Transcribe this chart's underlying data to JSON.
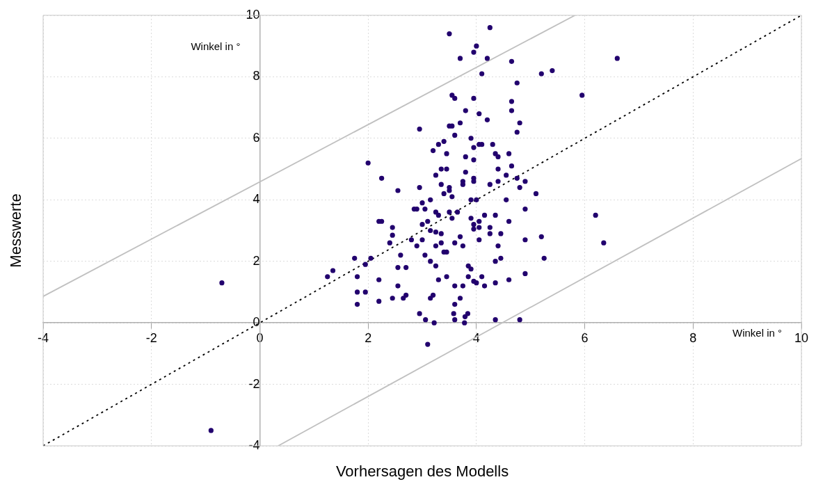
{
  "chart_data": {
    "type": "scatter",
    "xlabel": "Vorhersagen des Modells",
    "ylabel": "Messwerte",
    "annotations": [
      "Winkel in °",
      "Winkel in °"
    ],
    "xlim": [
      -4,
      10
    ],
    "ylim": [
      -4,
      10
    ],
    "xticks": [
      -4,
      -2,
      0,
      2,
      4,
      6,
      8,
      10
    ],
    "yticks": [
      -4,
      -2,
      0,
      2,
      4,
      6,
      8,
      10
    ],
    "grid": true,
    "legend": false,
    "marker": "circle",
    "series": [
      {
        "type": "line",
        "color": "#c0c0c0",
        "line_style": "solid",
        "marker": "none",
        "x": [
          -4,
          5.82
        ],
        "values": [
          0.86,
          10
        ]
      },
      {
        "type": "line",
        "color": "#c0c0c0",
        "line_style": "solid",
        "marker": "none",
        "x": [
          0.34,
          10
        ],
        "values": [
          -4,
          5.34
        ]
      },
      {
        "type": "line",
        "color": "#000000",
        "line_style": "dotted",
        "marker": "none",
        "x": [
          -4,
          10
        ],
        "values": [
          -4,
          10
        ]
      },
      {
        "color": "#22006e",
        "x": [
          -0.7,
          -0.9,
          6.6,
          5.95,
          5.4,
          5.2,
          6.2,
          6.35,
          4.8,
          4.35,
          3.1,
          3.5,
          4.25,
          4.0,
          3.95,
          4.2,
          3.7,
          4.65,
          4.1,
          4.75,
          3.55,
          3.6,
          3.95,
          4.65,
          4.65,
          3.8,
          4.05,
          4.2,
          3.7,
          4.8,
          3.55,
          3.5,
          2.95,
          4.75,
          3.6,
          3.9,
          3.4,
          4.05,
          4.1,
          4.3,
          3.3,
          3.95,
          3.2,
          3.45,
          4.35,
          4.6,
          4.4,
          3.8,
          3.95,
          2.0,
          4.65,
          3.35,
          3.45,
          4.4,
          3.8,
          3.25,
          4.55,
          4.75,
          2.25,
          3.95,
          3.75,
          3.95,
          4.4,
          4.9,
          4.25,
          3.75,
          3.35,
          3.5,
          2.95,
          3.5,
          2.55,
          4.8,
          5.1,
          3.4,
          3.55,
          3.9,
          4.0,
          3.15,
          4.55,
          3.0,
          2.9,
          2.85,
          3.05,
          4.9,
          3.65,
          3.5,
          3.25,
          4.15,
          3.3,
          3.55,
          3.9,
          4.35,
          4.05,
          2.25,
          2.2,
          3.1,
          3.95,
          4.6,
          3.0,
          4.05,
          3.95,
          4.25,
          3.15,
          2.45,
          3.25,
          3.35,
          4.25,
          2.45,
          3.7,
          4.45,
          5.2,
          2.8,
          3.0,
          3.35,
          3.6,
          4.9,
          4.05,
          3.75,
          2.9,
          3.25,
          4.4,
          2.4,
          1.75,
          2.05,
          3.45,
          4.45,
          3.4,
          5.25,
          3.05,
          2.6,
          3.15,
          1.95,
          4.35,
          3.25,
          3.85,
          3.9,
          2.55,
          2.7,
          1.35,
          1.8,
          1.25,
          4.9,
          3.85,
          4.1,
          3.45,
          2.2,
          3.3,
          4.0,
          4.35,
          4.6,
          3.95,
          2.55,
          3.75,
          4.15,
          3.6,
          1.8,
          1.95,
          2.7,
          2.45,
          2.65,
          3.15,
          3.2,
          3.7,
          2.2,
          1.8,
          3.6,
          2.95,
          3.06,
          3.22,
          3.58,
          3.6,
          3.79,
          3.84,
          3.78
        ],
        "values": [
          1.3,
          -3.5,
          8.6,
          7.4,
          8.2,
          8.1,
          3.5,
          2.6,
          0.1,
          0.1,
          -0.7,
          9.4,
          9.6,
          9.0,
          8.8,
          8.6,
          8.6,
          8.5,
          8.1,
          7.8,
          7.4,
          7.3,
          7.3,
          7.2,
          6.9,
          6.9,
          6.8,
          6.6,
          6.5,
          6.5,
          6.4,
          6.4,
          6.3,
          6.2,
          6.1,
          6.0,
          5.9,
          5.8,
          5.8,
          5.8,
          5.8,
          5.7,
          5.6,
          5.5,
          5.5,
          5.5,
          5.4,
          5.4,
          5.3,
          5.2,
          5.1,
          5.0,
          5.0,
          5.0,
          4.9,
          4.8,
          4.8,
          4.7,
          4.7,
          4.7,
          4.6,
          4.6,
          4.6,
          4.6,
          4.5,
          4.5,
          4.5,
          4.4,
          4.4,
          4.3,
          4.3,
          4.4,
          4.2,
          4.2,
          4.1,
          4.0,
          4.0,
          4.0,
          4.0,
          3.9,
          3.7,
          3.7,
          3.7,
          3.7,
          3.6,
          3.6,
          3.6,
          3.5,
          3.5,
          3.4,
          3.4,
          3.5,
          3.3,
          3.3,
          3.3,
          3.3,
          3.2,
          3.3,
          3.2,
          3.1,
          3.05,
          3.1,
          3.0,
          3.1,
          2.95,
          2.9,
          2.9,
          2.85,
          2.8,
          2.9,
          2.8,
          2.7,
          2.7,
          2.6,
          2.6,
          2.7,
          2.7,
          2.5,
          2.5,
          2.5,
          2.5,
          2.6,
          2.1,
          2.1,
          2.3,
          2.1,
          2.3,
          2.1,
          2.2,
          2.2,
          2.0,
          1.9,
          2.0,
          1.85,
          1.85,
          1.75,
          1.8,
          1.8,
          1.7,
          1.5,
          1.5,
          1.6,
          1.5,
          1.5,
          1.5,
          1.4,
          1.4,
          1.3,
          1.3,
          1.4,
          1.35,
          1.2,
          1.2,
          1.2,
          1.2,
          1.0,
          1.0,
          0.9,
          0.8,
          0.8,
          0.8,
          0.9,
          0.8,
          0.7,
          0.6,
          0.6,
          0.3,
          0.1,
          0.0,
          0.3,
          0.1,
          0.2,
          0.3,
          0.0
        ]
      }
    ]
  }
}
